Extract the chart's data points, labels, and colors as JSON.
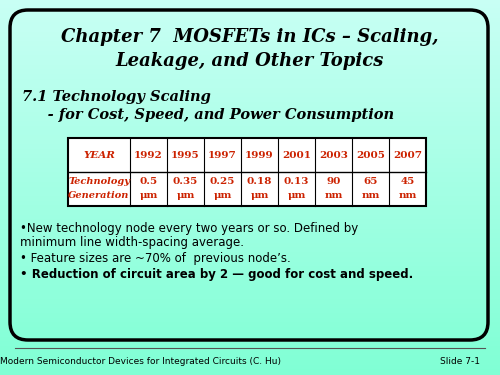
{
  "title_line1": "Chapter 7  MOSFETs in ICs – Scaling,",
  "title_line2": "Leakage, and Other Topics",
  "subtitle_line1": "7.1 Technology Scaling",
  "subtitle_line2": "     - for Cost, Speed, and Power Consumption",
  "table_header": [
    "YEAR",
    "1992",
    "1995",
    "1997",
    "1999",
    "2001",
    "2003",
    "2005",
    "2007"
  ],
  "table_row1_label_line1": "Technology",
  "table_row1_label_line2": "Generation",
  "table_row1_values_line1": [
    "0.5",
    "0.35",
    "0.25",
    "0.18",
    "0.13",
    "90",
    "65",
    "45"
  ],
  "table_row1_values_line2": [
    "μm",
    "μm",
    "μm",
    "μm",
    "μm",
    "nm",
    "nm",
    "nm"
  ],
  "table_color": "#cc2200",
  "bullet1a": "•New technology node every two years or so. Defined by",
  "bullet1b": "minimum line width-spacing average.",
  "bullet2": "• Feature sizes are ~70% of  previous node’s.",
  "bullet3": "• Reduction of circuit area by 2 — good for cost and speed.",
  "footer_left": "Modern Semiconductor Devices for Integrated Circuits (C. Hu)",
  "footer_right": "Slide 7-1",
  "bg_top": "#c8fff4",
  "bg_bottom": "#7fffd4"
}
